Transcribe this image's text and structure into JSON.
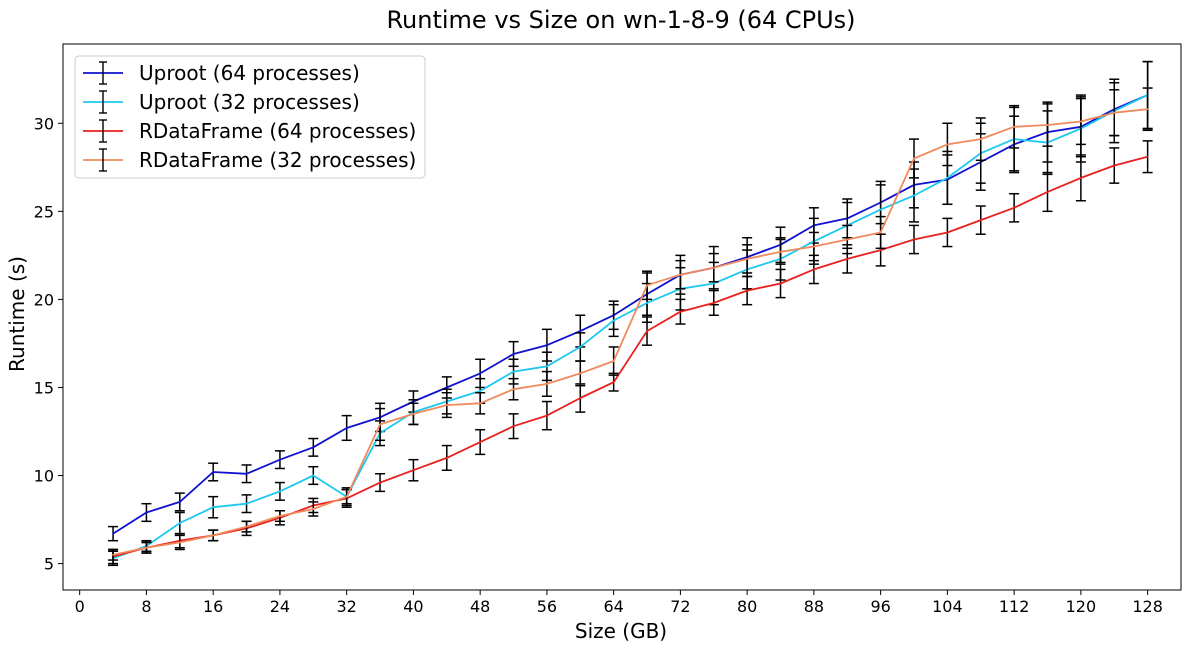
{
  "chart_data": {
    "type": "line",
    "title": "Runtime vs Size on wn-1-8-9 (64 CPUs)",
    "xlabel": "Size (GB)",
    "ylabel": "Runtime (s)",
    "xlim": [
      -2,
      132
    ],
    "ylim": [
      3.5,
      34.5
    ],
    "xticks": [
      0,
      8,
      16,
      24,
      32,
      40,
      48,
      56,
      64,
      72,
      80,
      88,
      96,
      104,
      112,
      120,
      128
    ],
    "yticks": [
      5,
      10,
      15,
      20,
      25,
      30
    ],
    "grid": false,
    "legend_position": "top-left",
    "x": [
      4,
      8,
      12,
      16,
      20,
      24,
      28,
      32,
      36,
      40,
      44,
      48,
      52,
      56,
      60,
      64,
      68,
      72,
      76,
      80,
      84,
      88,
      92,
      96,
      100,
      104,
      108,
      112,
      116,
      120,
      124,
      128
    ],
    "series": [
      {
        "name": "Uproot (64 processes)",
        "color": "#1010d0",
        "values": [
          6.7,
          7.9,
          8.5,
          10.2,
          10.1,
          10.9,
          11.6,
          12.7,
          13.3,
          14.2,
          15.0,
          15.8,
          16.9,
          17.4,
          18.2,
          19.1,
          20.3,
          21.4,
          21.8,
          22.4,
          23.1,
          24.2,
          24.6,
          25.5,
          26.5,
          26.8,
          27.8,
          28.8,
          29.5,
          29.8,
          30.8,
          31.6
        ],
        "errors": [
          0.4,
          0.5,
          0.5,
          0.5,
          0.5,
          0.5,
          0.5,
          0.7,
          0.8,
          0.6,
          0.6,
          0.8,
          0.7,
          0.9,
          0.9,
          0.8,
          1.2,
          1.1,
          1.2,
          1.1,
          1.0,
          1.0,
          1.1,
          1.2,
          1.3,
          1.4,
          1.6,
          1.6,
          1.7,
          1.7,
          1.5,
          1.9
        ]
      },
      {
        "name": "Uproot (32 processes)",
        "color": "#1ec8f0",
        "values": [
          5.3,
          6.0,
          7.3,
          8.2,
          8.4,
          9.1,
          10.0,
          8.8,
          12.4,
          13.6,
          14.2,
          14.8,
          15.9,
          16.2,
          17.3,
          18.8,
          19.8,
          20.6,
          20.9,
          21.7,
          22.3,
          23.3,
          24.2,
          25.1,
          25.9,
          26.9,
          28.3,
          29.1,
          28.9,
          29.7,
          30.7,
          31.6
        ],
        "errors": [
          0.4,
          0.3,
          0.6,
          0.6,
          0.5,
          0.5,
          0.5,
          0.5,
          0.7,
          0.7,
          0.7,
          0.7,
          0.7,
          0.8,
          0.8,
          0.9,
          1.1,
          1.2,
          1.2,
          1.1,
          1.2,
          1.3,
          1.3,
          1.4,
          1.5,
          1.5,
          1.7,
          1.8,
          1.8,
          1.9,
          1.8,
          1.9
        ]
      },
      {
        "name": "RDataFrame (64 processes)",
        "color": "#e8201e",
        "values": [
          5.4,
          5.9,
          6.3,
          6.6,
          7.0,
          7.6,
          8.3,
          8.7,
          9.6,
          10.3,
          11.0,
          11.9,
          12.8,
          13.4,
          14.4,
          15.3,
          18.2,
          19.3,
          19.8,
          20.5,
          20.9,
          21.7,
          22.3,
          22.8,
          23.4,
          23.8,
          24.5,
          25.2,
          26.1,
          26.9,
          27.6,
          28.1
        ],
        "errors": [
          0.4,
          0.3,
          0.4,
          0.3,
          0.4,
          0.4,
          0.4,
          0.5,
          0.5,
          0.6,
          0.7,
          0.7,
          0.7,
          0.8,
          0.8,
          0.5,
          0.8,
          0.7,
          0.7,
          0.8,
          0.8,
          0.8,
          0.8,
          0.9,
          0.8,
          0.8,
          0.8,
          0.8,
          1.1,
          1.3,
          1.0,
          0.9
        ]
      },
      {
        "name": "RDataFrame (32 processes)",
        "color": "#f08a5c",
        "values": [
          5.5,
          5.9,
          6.2,
          6.6,
          7.1,
          7.7,
          8.1,
          8.8,
          12.9,
          13.5,
          14.0,
          14.1,
          14.9,
          15.2,
          15.8,
          16.5,
          20.8,
          21.4,
          21.8,
          22.3,
          22.7,
          23.0,
          23.4,
          23.8,
          28.0,
          28.8,
          29.1,
          29.8,
          29.9,
          30.1,
          30.6,
          30.8
        ],
        "errors": [
          0.3,
          0.3,
          0.4,
          0.3,
          0.3,
          0.3,
          0.4,
          0.4,
          0.9,
          0.6,
          0.7,
          0.6,
          0.6,
          0.7,
          0.7,
          0.8,
          0.8,
          0.8,
          0.8,
          0.8,
          0.7,
          0.8,
          0.8,
          0.9,
          1.1,
          1.2,
          1.2,
          1.2,
          1.2,
          1.3,
          1.3,
          1.2
        ]
      }
    ]
  }
}
